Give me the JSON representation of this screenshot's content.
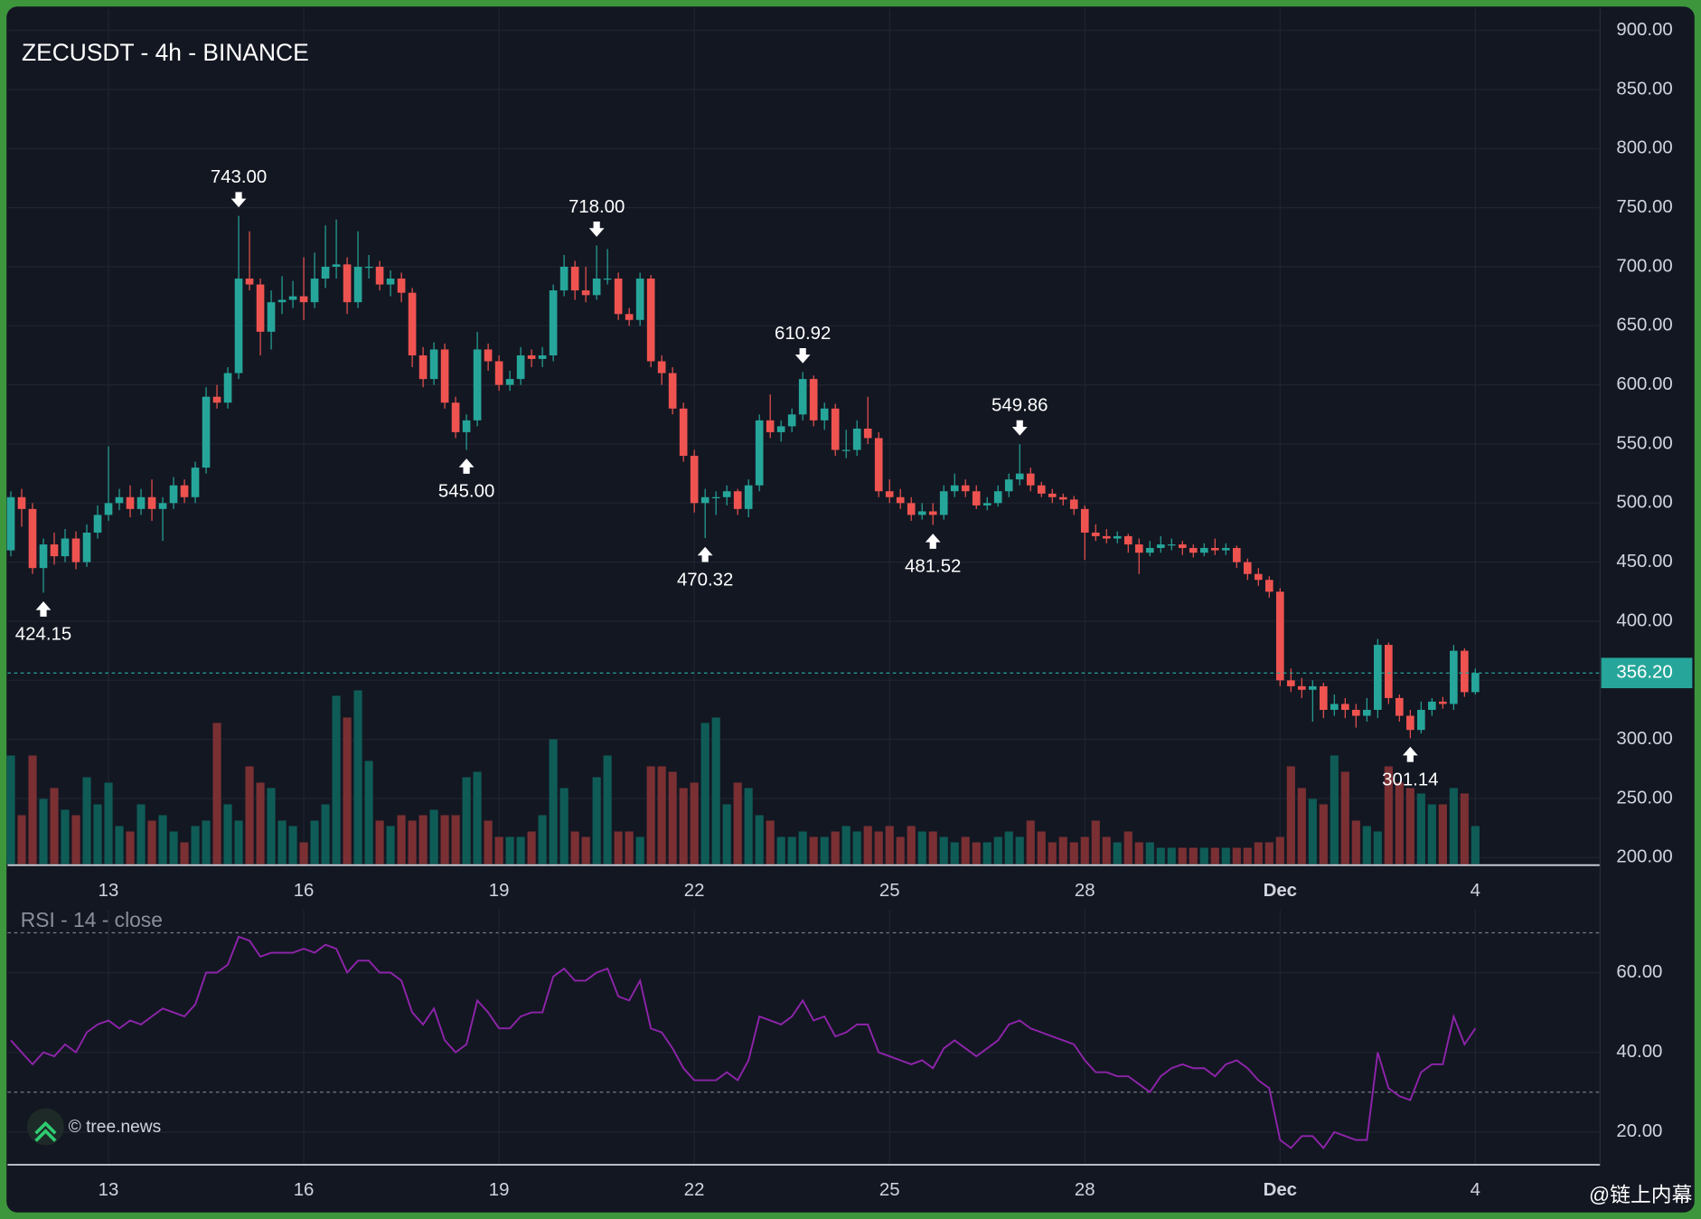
{
  "chart_data": {
    "type": "candlestick",
    "title": "ZECUSDT - 4h - BINANCE",
    "up_color": "#26a69a",
    "down_color": "#ef5350",
    "volume_up_color": "#0f5c57",
    "volume_down_color": "#7a3033",
    "ylim": [
      193.6,
      918.4
    ],
    "yticks": [
      {
        "value": 200,
        "label": "200.00"
      },
      {
        "value": 250,
        "label": "250.00"
      },
      {
        "value": 300,
        "label": "300.00"
      },
      {
        "value": 350,
        "label": "350.00"
      },
      {
        "value": 400,
        "label": "400.00"
      },
      {
        "value": 450,
        "label": "450.00"
      },
      {
        "value": 500,
        "label": "500.00"
      },
      {
        "value": 550,
        "label": "550.00"
      },
      {
        "value": 600,
        "label": "600.00"
      },
      {
        "value": 650,
        "label": "650.00"
      },
      {
        "value": 700,
        "label": "700.00"
      },
      {
        "value": 750,
        "label": "750.00"
      },
      {
        "value": 800,
        "label": "800.00"
      },
      {
        "value": 850,
        "label": "850.00"
      },
      {
        "value": 900,
        "label": "900.00"
      }
    ],
    "xlim": [
      -0.3,
      146.5
    ],
    "xticks": [
      {
        "value": 9,
        "label": "13"
      },
      {
        "value": 27,
        "label": "16"
      },
      {
        "value": 45,
        "label": "19"
      },
      {
        "value": 63,
        "label": "22"
      },
      {
        "value": 81,
        "label": "25"
      },
      {
        "value": 99,
        "label": "28"
      },
      {
        "value": 117,
        "label": "Dec"
      },
      {
        "value": 135,
        "label": "4"
      }
    ],
    "grid": true,
    "candles": [
      [
        460,
        510,
        455,
        505
      ],
      [
        505,
        512,
        480,
        495
      ],
      [
        495,
        500,
        440,
        445
      ],
      [
        445,
        470,
        424.15,
        465
      ],
      [
        465,
        475,
        448,
        455
      ],
      [
        455,
        478,
        450,
        470
      ],
      [
        470,
        476,
        444,
        450
      ],
      [
        450,
        482,
        446,
        475
      ],
      [
        475,
        498,
        470,
        490
      ],
      [
        490,
        548,
        485,
        500
      ],
      [
        500,
        512,
        494,
        505
      ],
      [
        505,
        515,
        488,
        495
      ],
      [
        495,
        512,
        490,
        505
      ],
      [
        505,
        520,
        485,
        495
      ],
      [
        495,
        505,
        468,
        500
      ],
      [
        500,
        522,
        495,
        515
      ],
      [
        515,
        520,
        500,
        505
      ],
      [
        505,
        535,
        500,
        530
      ],
      [
        530,
        598,
        525,
        590
      ],
      [
        590,
        600,
        580,
        585
      ],
      [
        585,
        615,
        580,
        610
      ],
      [
        610,
        743,
        605,
        690
      ],
      [
        690,
        730,
        680,
        685
      ],
      [
        685,
        690,
        625,
        645
      ],
      [
        645,
        680,
        630,
        670
      ],
      [
        670,
        692,
        660,
        672
      ],
      [
        672,
        688,
        665,
        675
      ],
      [
        675,
        708,
        655,
        670
      ],
      [
        670,
        712,
        665,
        690
      ],
      [
        690,
        735,
        682,
        700
      ],
      [
        700,
        740,
        690,
        702
      ],
      [
        702,
        708,
        660,
        670
      ],
      [
        670,
        730,
        665,
        700
      ],
      [
        700,
        710,
        690,
        700
      ],
      [
        700,
        705,
        680,
        685
      ],
      [
        685,
        697,
        675,
        690
      ],
      [
        690,
        695,
        670,
        678
      ],
      [
        678,
        682,
        615,
        625
      ],
      [
        625,
        632,
        598,
        605
      ],
      [
        605,
        636,
        600,
        630
      ],
      [
        630,
        635,
        580,
        585
      ],
      [
        585,
        590,
        555,
        560
      ],
      [
        560,
        575,
        545,
        570
      ],
      [
        570,
        645,
        565,
        630
      ],
      [
        630,
        635,
        612,
        620
      ],
      [
        620,
        625,
        595,
        600
      ],
      [
        600,
        612,
        595,
        605
      ],
      [
        605,
        632,
        600,
        625
      ],
      [
        625,
        630,
        615,
        622
      ],
      [
        622,
        632,
        615,
        625
      ],
      [
        625,
        685,
        620,
        680
      ],
      [
        680,
        710,
        675,
        700
      ],
      [
        700,
        705,
        672,
        680
      ],
      [
        680,
        700,
        670,
        676
      ],
      [
        676,
        718,
        672,
        690
      ],
      [
        690,
        715,
        685,
        690
      ],
      [
        690,
        695,
        655,
        660
      ],
      [
        660,
        665,
        650,
        655
      ],
      [
        655,
        695,
        650,
        690
      ],
      [
        690,
        693,
        615,
        620
      ],
      [
        620,
        625,
        600,
        610
      ],
      [
        610,
        615,
        575,
        580
      ],
      [
        580,
        585,
        535,
        540
      ],
      [
        540,
        545,
        492,
        500
      ],
      [
        500,
        512,
        470.32,
        505
      ],
      [
        505,
        510,
        490,
        505
      ],
      [
        505,
        515,
        498,
        510
      ],
      [
        510,
        512,
        490,
        495
      ],
      [
        495,
        520,
        488,
        515
      ],
      [
        515,
        575,
        510,
        570
      ],
      [
        570,
        592,
        555,
        560
      ],
      [
        560,
        570,
        552,
        565
      ],
      [
        565,
        580,
        560,
        575
      ],
      [
        575,
        610.92,
        570,
        605
      ],
      [
        605,
        608,
        565,
        570
      ],
      [
        570,
        585,
        562,
        580
      ],
      [
        580,
        584,
        540,
        545
      ],
      [
        545,
        562,
        538,
        545
      ],
      [
        545,
        570,
        540,
        563
      ],
      [
        563,
        590,
        550,
        555
      ],
      [
        555,
        560,
        505,
        510
      ],
      [
        510,
        520,
        500,
        505
      ],
      [
        505,
        512,
        495,
        500
      ],
      [
        500,
        505,
        485,
        490
      ],
      [
        490,
        500,
        486,
        493
      ],
      [
        493,
        500,
        481.52,
        490
      ],
      [
        490,
        515,
        486,
        510
      ],
      [
        510,
        525,
        505,
        515
      ],
      [
        515,
        520,
        505,
        510
      ],
      [
        510,
        515,
        495,
        498
      ],
      [
        498,
        505,
        494,
        500
      ],
      [
        500,
        515,
        497,
        510
      ],
      [
        510,
        525,
        505,
        520
      ],
      [
        520,
        549.86,
        515,
        525
      ],
      [
        525,
        530,
        510,
        515
      ],
      [
        515,
        518,
        505,
        508
      ],
      [
        508,
        512,
        500,
        505
      ],
      [
        505,
        508,
        498,
        503
      ],
      [
        503,
        506,
        490,
        495
      ],
      [
        495,
        498,
        452,
        475
      ],
      [
        475,
        482,
        468,
        472
      ],
      [
        472,
        478,
        466,
        470
      ],
      [
        470,
        476,
        466,
        472
      ],
      [
        472,
        474,
        458,
        465
      ],
      [
        465,
        470,
        440,
        458
      ],
      [
        458,
        468,
        455,
        462
      ],
      [
        462,
        472,
        458,
        465
      ],
      [
        465,
        470,
        460,
        465
      ],
      [
        465,
        468,
        456,
        462
      ],
      [
        462,
        465,
        454,
        458
      ],
      [
        458,
        466,
        455,
        462
      ],
      [
        462,
        470,
        456,
        460
      ],
      [
        460,
        466,
        456,
        462
      ],
      [
        462,
        464,
        445,
        450
      ],
      [
        450,
        453,
        435,
        440
      ],
      [
        440,
        445,
        430,
        435
      ],
      [
        435,
        438,
        420,
        425
      ],
      [
        425,
        428,
        345,
        350
      ],
      [
        350,
        360,
        340,
        345
      ],
      [
        345,
        352,
        335,
        342
      ],
      [
        342,
        350,
        315,
        345
      ],
      [
        345,
        348,
        318,
        325
      ],
      [
        325,
        338,
        320,
        330
      ],
      [
        330,
        335,
        318,
        325
      ],
      [
        325,
        330,
        310,
        320
      ],
      [
        320,
        335,
        315,
        325
      ],
      [
        325,
        385,
        318,
        380
      ],
      [
        380,
        382,
        330,
        335
      ],
      [
        335,
        338,
        315,
        320
      ],
      [
        320,
        325,
        301.14,
        308
      ],
      [
        308,
        332,
        305,
        325
      ],
      [
        325,
        335,
        320,
        332
      ],
      [
        332,
        336,
        326,
        330
      ],
      [
        330,
        380,
        325,
        375
      ],
      [
        375,
        377,
        336,
        340
      ],
      [
        340,
        360,
        338,
        356.2
      ]
    ],
    "volumes": [
      100,
      45,
      100,
      60,
      70,
      50,
      45,
      80,
      55,
      75,
      35,
      30,
      55,
      40,
      45,
      30,
      20,
      35,
      40,
      130,
      55,
      40,
      90,
      75,
      70,
      40,
      35,
      20,
      40,
      55,
      155,
      135,
      160,
      95,
      40,
      35,
      45,
      40,
      45,
      50,
      45,
      45,
      80,
      85,
      40,
      25,
      25,
      25,
      30,
      45,
      115,
      70,
      30,
      25,
      80,
      100,
      30,
      30,
      25,
      90,
      90,
      85,
      70,
      75,
      130,
      135,
      55,
      75,
      70,
      45,
      40,
      25,
      25,
      30,
      25,
      25,
      30,
      35,
      30,
      35,
      30,
      35,
      25,
      35,
      30,
      30,
      25,
      20,
      25,
      20,
      20,
      25,
      30,
      25,
      40,
      30,
      20,
      25,
      20,
      25,
      40,
      25,
      20,
      30,
      20,
      20,
      15,
      15,
      15,
      15,
      15,
      15,
      15,
      15,
      15,
      20,
      20,
      25,
      90,
      70,
      60,
      55,
      100,
      85,
      40,
      35,
      30,
      90,
      75,
      70,
      65,
      55,
      55,
      70,
      65,
      35
    ],
    "annotations": [
      {
        "index": 3,
        "value": 424.15,
        "label": "424.15"
      },
      {
        "index": 21,
        "value": 743,
        "label": "743.00"
      },
      {
        "index": 42,
        "value": 545,
        "label": "545.00"
      },
      {
        "index": 54,
        "value": 718,
        "label": "718.00"
      },
      {
        "index": 64,
        "value": 470.32,
        "label": "470.32"
      },
      {
        "index": 73,
        "value": 610.92,
        "label": "610.92"
      },
      {
        "index": 85,
        "value": 481.52,
        "label": "481.52"
      },
      {
        "index": 93,
        "value": 549.86,
        "label": "549.86"
      },
      {
        "index": 129,
        "value": 301.14,
        "label": "301.14"
      }
    ],
    "last_price": 356.2,
    "last_price_label": "356.20",
    "last_price_color": "#26a69a",
    "rsi": {
      "title": "RSI - 14 - close",
      "color": "#8e24aa",
      "ylim": [
        11.8,
        75.8
      ],
      "bands": [
        30,
        70
      ],
      "yticks": [
        {
          "value": 20,
          "label": "20.00"
        },
        {
          "value": 40,
          "label": "40.00"
        },
        {
          "value": 60,
          "label": "60.00"
        }
      ],
      "values": [
        43,
        40,
        37,
        40,
        39,
        42,
        40,
        45,
        47,
        48,
        46,
        48,
        47,
        49,
        51,
        50,
        49,
        52,
        60,
        60,
        62,
        69,
        68,
        64,
        65,
        65,
        65,
        66,
        65,
        67,
        66,
        60,
        63,
        63,
        60,
        60,
        58,
        50,
        47,
        51,
        43,
        40,
        42,
        53,
        50,
        46,
        46,
        49,
        50,
        50,
        59,
        61,
        58,
        58,
        60,
        61,
        54,
        53,
        58,
        46,
        45,
        41,
        36,
        33,
        33,
        33,
        35,
        33,
        38,
        49,
        48,
        47,
        49,
        53,
        48,
        49,
        44,
        45,
        47,
        47,
        40,
        39,
        38,
        37,
        38,
        36,
        41,
        43,
        41,
        39,
        41,
        43,
        47,
        48,
        46,
        45,
        44,
        43,
        42,
        38,
        35,
        35,
        34,
        34,
        32,
        30,
        34,
        36,
        37,
        36,
        36,
        34,
        37,
        38,
        36,
        33,
        31,
        18,
        16,
        19,
        19,
        16,
        20,
        19,
        18,
        18,
        40,
        31,
        29,
        28,
        35,
        37,
        37,
        49,
        42,
        46
      ]
    },
    "watermark": "© tree.news",
    "credit": "@链上内幕"
  }
}
